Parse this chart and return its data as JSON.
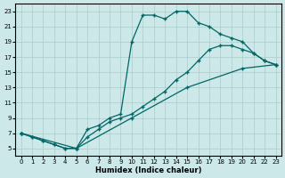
{
  "xlabel": "Humidex (Indice chaleur)",
  "bg_color": "#cce8e8",
  "grid_color": "#aacccc",
  "line_color": "#006666",
  "marker": "+",
  "xlim": [
    -0.5,
    23.5
  ],
  "ylim": [
    4,
    24
  ],
  "xticks": [
    0,
    1,
    2,
    3,
    4,
    5,
    6,
    7,
    8,
    9,
    10,
    11,
    12,
    13,
    14,
    15,
    16,
    17,
    18,
    19,
    20,
    21,
    22,
    23
  ],
  "yticks": [
    5,
    7,
    9,
    11,
    13,
    15,
    17,
    19,
    21,
    23
  ],
  "line1_x": [
    0,
    1,
    2,
    3,
    4,
    5,
    6,
    7,
    8,
    9,
    10,
    11,
    12,
    13,
    14,
    15,
    16,
    17,
    18,
    19,
    20,
    21,
    22,
    23
  ],
  "line1_y": [
    7,
    6.5,
    6,
    5.5,
    5,
    5,
    7.5,
    8,
    9,
    9.5,
    19,
    22.5,
    22.5,
    22,
    23,
    23,
    21.5,
    21,
    20,
    19.5,
    19,
    17.5,
    16.5,
    16
  ],
  "line2_x": [
    0,
    1,
    2,
    3,
    4,
    5,
    6,
    7,
    8,
    9,
    10,
    11,
    12,
    13,
    14,
    15,
    16,
    17,
    18,
    19,
    20,
    21,
    22,
    23
  ],
  "line2_y": [
    7,
    6.5,
    6,
    5.5,
    5,
    5,
    6.5,
    7.5,
    8.5,
    9,
    9.5,
    10.5,
    11.5,
    12.5,
    14,
    15,
    16.5,
    18,
    18.5,
    18.5,
    18,
    17.5,
    16.5,
    16
  ],
  "line3_x": [
    0,
    5,
    10,
    15,
    20,
    23
  ],
  "line3_y": [
    7,
    5,
    9,
    13,
    15.5,
    16
  ]
}
